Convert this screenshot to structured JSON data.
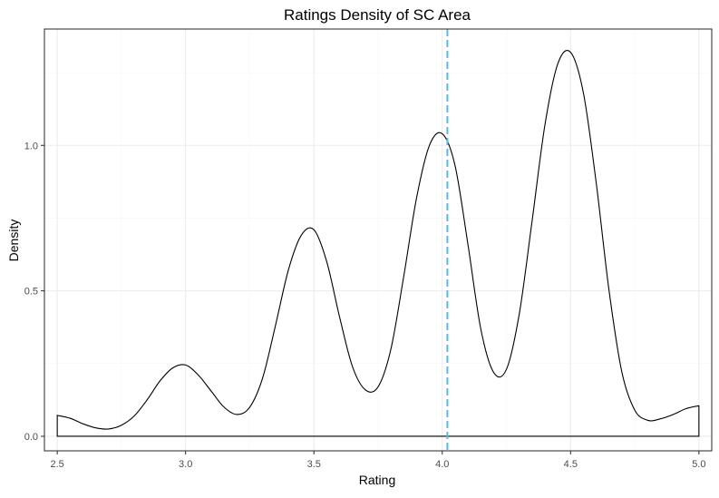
{
  "chart_data": {
    "type": "area",
    "title": "Ratings Density of SC Area",
    "xlabel": "Rating",
    "ylabel": "Density",
    "xlim": [
      2.45,
      5.05
    ],
    "ylim": [
      -0.05,
      1.4
    ],
    "x_ticks": [
      2.5,
      3.0,
      3.5,
      4.0,
      4.5,
      5.0
    ],
    "x_tick_labels": [
      "2.5",
      "3.0",
      "3.5",
      "4.0",
      "4.5",
      "5.0"
    ],
    "y_ticks": [
      0.0,
      0.5,
      1.0
    ],
    "y_tick_labels": [
      "0.0",
      "0.5",
      "1.0"
    ],
    "grid": true,
    "legend": "none",
    "series": [
      {
        "x": [
          2.5,
          2.55,
          2.6,
          2.65,
          2.7,
          2.75,
          2.8,
          2.85,
          2.9,
          2.95,
          3.0,
          3.05,
          3.1,
          3.15,
          3.2,
          3.25,
          3.3,
          3.35,
          3.4,
          3.45,
          3.5,
          3.55,
          3.6,
          3.65,
          3.7,
          3.75,
          3.8,
          3.85,
          3.9,
          3.95,
          4.0,
          4.05,
          4.1,
          4.15,
          4.2,
          4.25,
          4.3,
          4.35,
          4.4,
          4.45,
          4.5,
          4.55,
          4.6,
          4.65,
          4.7,
          4.75,
          4.8,
          4.85,
          4.9,
          4.95,
          5.0
        ],
        "y": [
          0.072,
          0.062,
          0.043,
          0.029,
          0.025,
          0.038,
          0.07,
          0.125,
          0.19,
          0.235,
          0.245,
          0.21,
          0.155,
          0.1,
          0.075,
          0.1,
          0.2,
          0.38,
          0.57,
          0.69,
          0.71,
          0.6,
          0.41,
          0.24,
          0.16,
          0.17,
          0.3,
          0.55,
          0.82,
          1.0,
          1.04,
          0.93,
          0.66,
          0.37,
          0.22,
          0.23,
          0.42,
          0.74,
          1.07,
          1.28,
          1.32,
          1.18,
          0.87,
          0.5,
          0.22,
          0.09,
          0.055,
          0.06,
          0.075,
          0.095,
          0.105
        ]
      }
    ],
    "annotations": [
      {
        "type": "vline",
        "x": 4.02,
        "style": "dashed",
        "color": "#5bb8e0"
      }
    ],
    "colors": {
      "line": "#000000",
      "mean_line": "#5bb8e0",
      "grid": "#ebebeb",
      "panel_border": "#333333"
    }
  }
}
